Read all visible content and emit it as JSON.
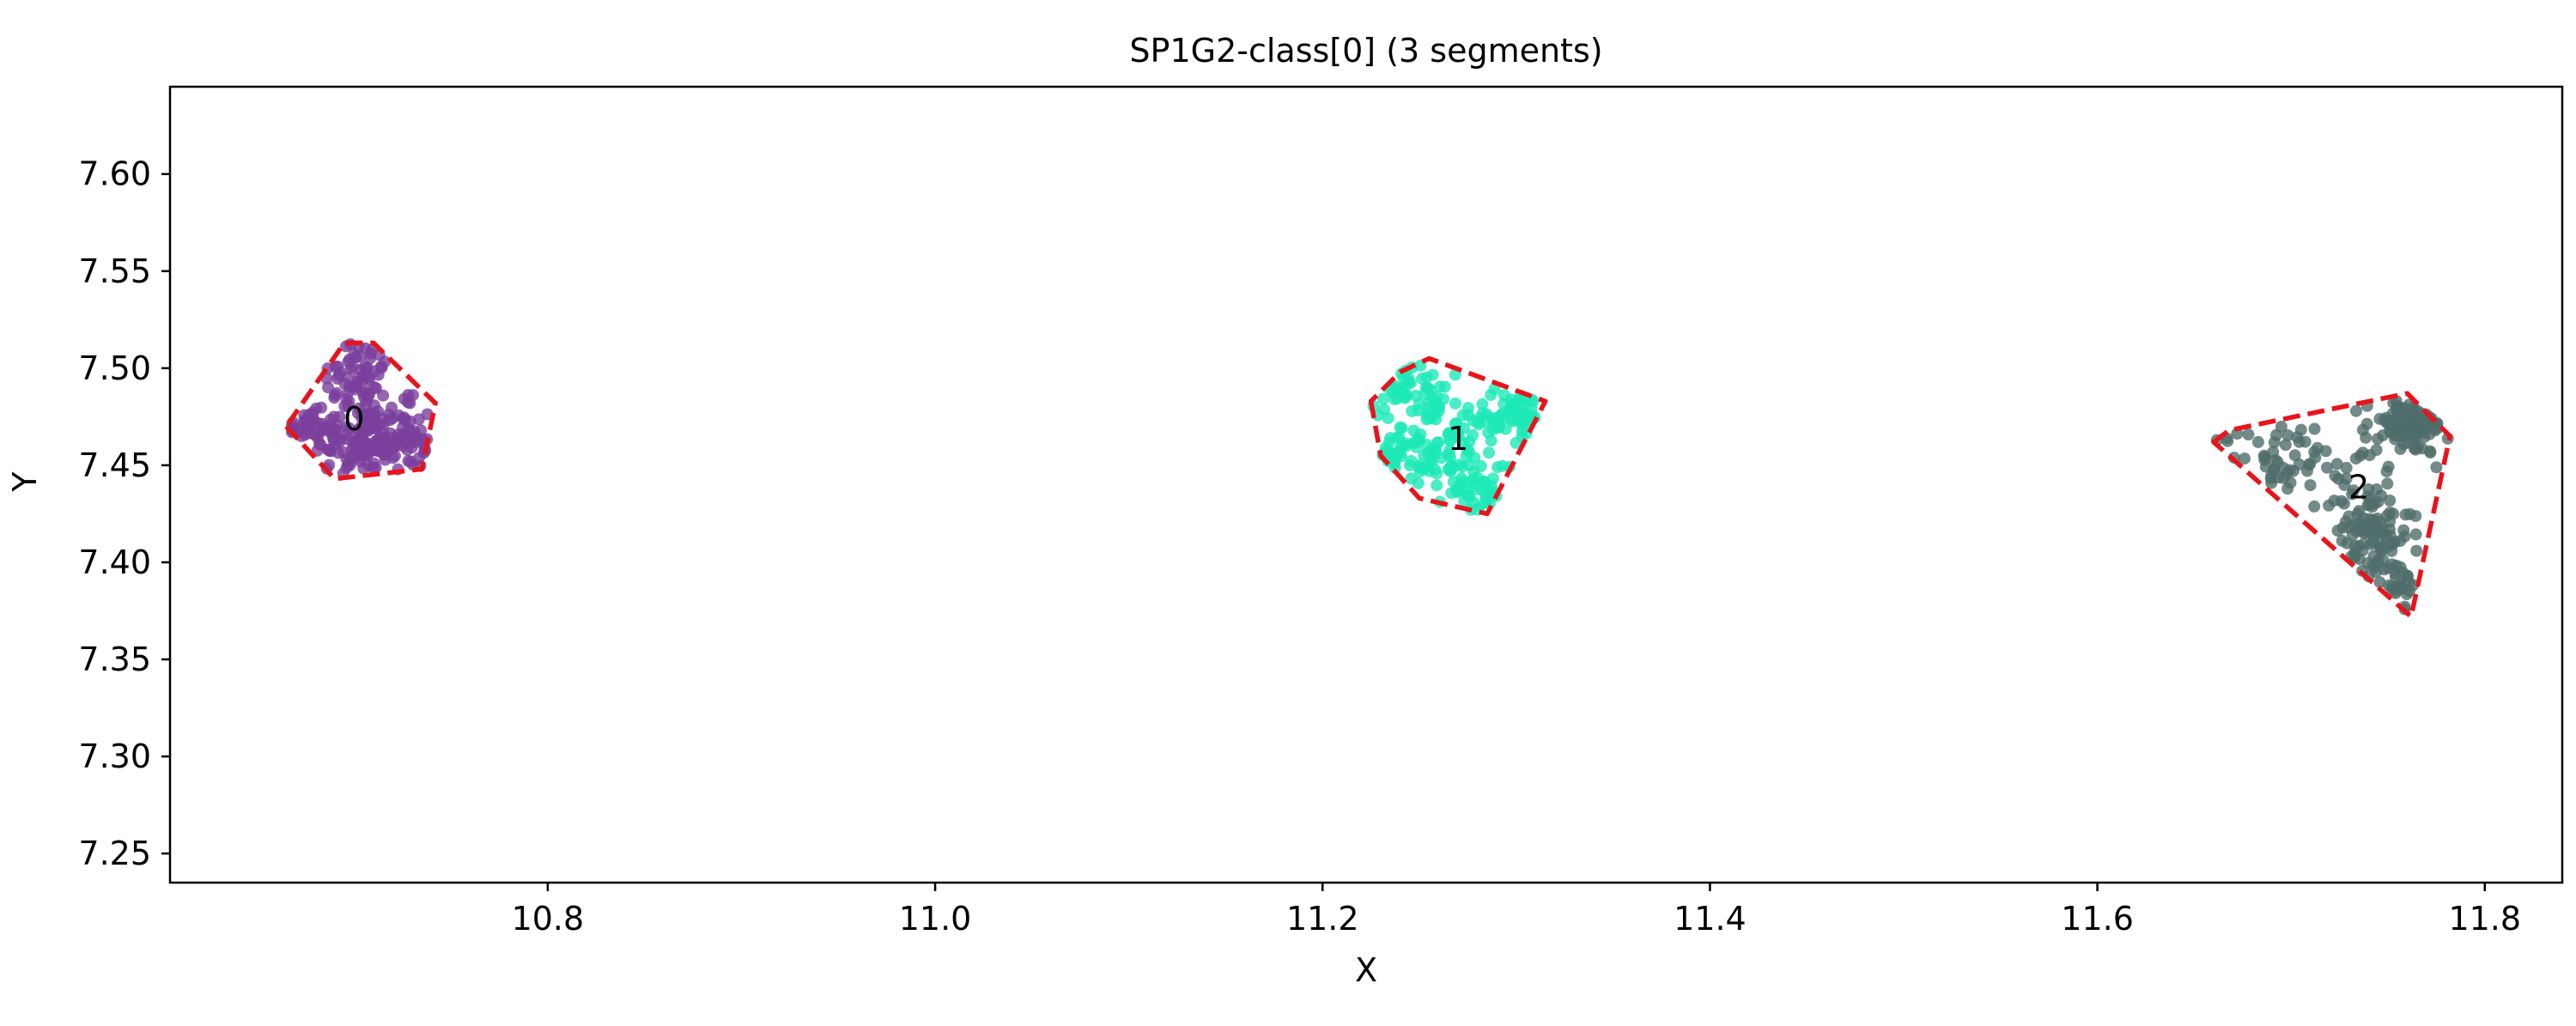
{
  "chart_data": {
    "type": "scatter",
    "title": "SP1G2-class[0] (3 segments)",
    "xlabel": "X",
    "ylabel": "Y",
    "xlim": [
      10.605,
      11.84
    ],
    "ylim": [
      7.235,
      7.645
    ],
    "xticks": [
      10.8,
      11.0,
      11.2,
      11.4,
      11.6,
      11.8
    ],
    "xtick_labels": [
      "10.8",
      "11.0",
      "11.2",
      "11.4",
      "11.6",
      "11.8"
    ],
    "yticks": [
      7.25,
      7.3,
      7.35,
      7.4,
      7.45,
      7.5,
      7.55,
      7.6
    ],
    "ytick_labels": [
      "7.25",
      "7.30",
      "7.35",
      "7.40",
      "7.45",
      "7.50",
      "7.55",
      "7.60"
    ],
    "grid": false,
    "hull_color": "#e8141b",
    "hull_style": "dashed",
    "segments": [
      {
        "label": "0",
        "color": "#7b3e9c",
        "label_pos": [
          10.7,
          7.468
        ],
        "hull": [
          [
            10.665,
            7.47
          ],
          [
            10.69,
            7.443
          ],
          [
            10.735,
            7.448
          ],
          [
            10.742,
            7.482
          ],
          [
            10.71,
            7.513
          ],
          [
            10.695,
            7.513
          ]
        ],
        "clusters": [
          {
            "center": [
              10.703,
              7.495
            ],
            "spread": [
              0.009,
              0.012
            ],
            "n": 70
          },
          {
            "center": [
              10.703,
              7.462
            ],
            "spread": [
              0.014,
              0.01
            ],
            "n": 110
          },
          {
            "center": [
              10.675,
              7.47
            ],
            "spread": [
              0.009,
              0.004
            ],
            "n": 35
          },
          {
            "center": [
              10.728,
              7.462
            ],
            "spread": [
              0.01,
              0.012
            ],
            "n": 55
          }
        ]
      },
      {
        "label": "1",
        "color": "#1de9b6",
        "label_pos": [
          11.27,
          7.458
        ],
        "hull": [
          [
            11.225,
            7.483
          ],
          [
            11.23,
            7.455
          ],
          [
            11.25,
            7.433
          ],
          [
            11.285,
            7.425
          ],
          [
            11.315,
            7.483
          ],
          [
            11.255,
            7.505
          ],
          [
            11.24,
            7.498
          ]
        ],
        "clusters": [
          {
            "center": [
              11.245,
              7.49
            ],
            "spread": [
              0.01,
              0.008
            ],
            "n": 45
          },
          {
            "center": [
              11.265,
              7.46
            ],
            "spread": [
              0.015,
              0.012
            ],
            "n": 100
          },
          {
            "center": [
              11.302,
              7.475
            ],
            "spread": [
              0.008,
              0.008
            ],
            "n": 45
          },
          {
            "center": [
              11.288,
              7.437
            ],
            "spread": [
              0.012,
              0.006
            ],
            "n": 40
          },
          {
            "center": [
              11.238,
              7.455
            ],
            "spread": [
              0.008,
              0.006
            ],
            "n": 30
          }
        ]
      },
      {
        "label": "2",
        "color": "#4f6d6a",
        "label_pos": [
          11.735,
          7.433
        ],
        "hull": [
          [
            11.66,
            7.462
          ],
          [
            11.668,
            7.468
          ],
          [
            11.76,
            7.487
          ],
          [
            11.782,
            7.465
          ],
          [
            11.762,
            7.372
          ]
        ],
        "clusters": [
          {
            "center": [
              11.76,
              7.47
            ],
            "spread": [
              0.011,
              0.007
            ],
            "n": 100
          },
          {
            "center": [
              11.74,
              7.415
            ],
            "spread": [
              0.011,
              0.014
            ],
            "n": 110
          },
          {
            "center": [
              11.695,
              7.455
            ],
            "spread": [
              0.022,
              0.01
            ],
            "n": 55
          },
          {
            "center": [
              11.755,
              7.385
            ],
            "spread": [
              0.006,
              0.008
            ],
            "n": 25
          }
        ]
      }
    ]
  }
}
